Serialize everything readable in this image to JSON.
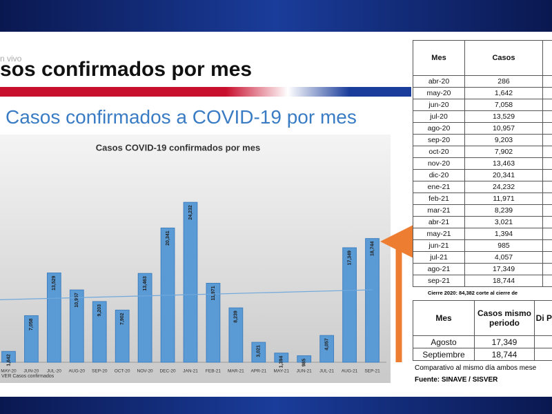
{
  "live": "n vivo",
  "banner": "sos confirmados por mes",
  "subtitle": "Casos confirmados a COVID-19 por mes",
  "chart_data": {
    "type": "bar",
    "title": "Casos COVID-19 confirmados por mes",
    "categories": [
      "MAY-20",
      "JUN-20",
      "JUL-20",
      "AUG-20",
      "SEP-20",
      "OCT-20",
      "NOV-20",
      "DEC-20",
      "JAN-21",
      "FEB-21",
      "MAR-21",
      "APR-21",
      "MAY-21",
      "JUN-21",
      "JUL-21",
      "AUG-21",
      "SEP-21"
    ],
    "values": [
      1642,
      7058,
      13529,
      10957,
      9203,
      7902,
      13463,
      20341,
      24232,
      11971,
      8239,
      3021,
      1394,
      985,
      4057,
      17349,
      18744
    ],
    "value_labels": [
      "1,642",
      "7,058",
      "13,529",
      "10,957",
      "9,203",
      "7,902",
      "13,463",
      "20,341",
      "24,232",
      "11,971",
      "8,239",
      "3,021",
      "1,394",
      "985",
      "4,057",
      "17,349",
      "18,744"
    ],
    "color": "#5b9bd5",
    "ylim": [
      0,
      30000
    ],
    "trendline": true,
    "source": "VER Casos confirmados"
  },
  "table1": {
    "headers": [
      "Mes",
      "Casos"
    ],
    "rows": [
      [
        "abr-20",
        "286"
      ],
      [
        "may-20",
        "1,642"
      ],
      [
        "jun-20",
        "7,058"
      ],
      [
        "jul-20",
        "13,529"
      ],
      [
        "ago-20",
        "10,957"
      ],
      [
        "sep-20",
        "9,203"
      ],
      [
        "oct-20",
        "7,902"
      ],
      [
        "nov-20",
        "13,463"
      ],
      [
        "dic-20",
        "20,341"
      ],
      [
        "ene-21",
        "24,232"
      ],
      [
        "feb-21",
        "11,971"
      ],
      [
        "mar-21",
        "8,239"
      ],
      [
        "abr-21",
        "3,021"
      ],
      [
        "may-21",
        "1,394"
      ],
      [
        "jun-21",
        "985"
      ],
      [
        "jul-21",
        "4,057"
      ],
      [
        "ago-21",
        "17,349"
      ],
      [
        "sep-21",
        "18,744"
      ]
    ]
  },
  "note": "Cierre 2020: 84,382 corte al cierre de",
  "table2": {
    "headers": [
      "Mes",
      "Casos mismo periodo",
      "Di Po"
    ],
    "rows": [
      [
        "Agosto",
        "17,349"
      ],
      [
        "Septiembre",
        "18,744"
      ]
    ]
  },
  "comparison": "Comparativo al mismo día ambos mese",
  "source": "Fuente: SINAVE / SISVER"
}
